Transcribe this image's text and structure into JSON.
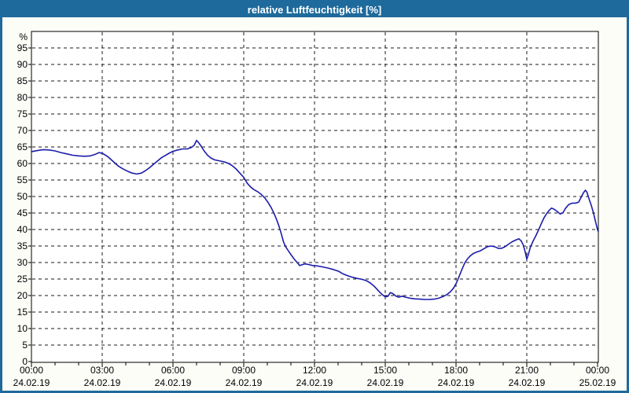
{
  "window": {
    "title": "relative Luftfeuchtigkeit [%]"
  },
  "colors": {
    "chrome": "#1e6a9c",
    "titlebar_text": "#ffffff",
    "line": "#1c1caa",
    "grid": "#1a1a1a",
    "frame": "#000000",
    "content_bg": "#fdfdf8",
    "plot_bg": "#ffffff",
    "label": "#000000"
  },
  "chart_data": {
    "type": "line",
    "title": "relative Luftfeuchtigkeit [%]",
    "xlabel": "",
    "ylabel": "%",
    "grid": "dashed",
    "legend": "none",
    "y_axis": {
      "unit_label": "%",
      "min": 0,
      "max": 100,
      "tick_step": 5,
      "labeled_ticks": [
        95,
        90,
        85,
        80,
        75,
        70,
        65,
        60,
        55,
        50,
        45,
        40,
        35,
        30,
        25,
        20,
        15,
        10,
        5,
        0
      ]
    },
    "x_axis": {
      "range_minutes": [
        0,
        1442
      ],
      "minor_tick_minutes": 60,
      "major_tick_minutes": 180,
      "ticks": [
        {
          "minutes": 0,
          "time": "00:00",
          "date": "24.02.19"
        },
        {
          "minutes": 180,
          "time": "03:00",
          "date": "24.02.19"
        },
        {
          "minutes": 360,
          "time": "06:00",
          "date": "24.02.19"
        },
        {
          "minutes": 540,
          "time": "09:00",
          "date": "24.02.19"
        },
        {
          "minutes": 720,
          "time": "12:00",
          "date": "24.02.19"
        },
        {
          "minutes": 900,
          "time": "15:00",
          "date": "24.02.19"
        },
        {
          "minutes": 1080,
          "time": "18:00",
          "date": "24.02.19"
        },
        {
          "minutes": 1260,
          "time": "21:00",
          "date": "24.02.19"
        },
        {
          "minutes": 1440,
          "time": "00:00",
          "date": "25.02.19"
        }
      ]
    },
    "series": [
      {
        "name": "relative Luftfeuchtigkeit",
        "color": "#1c1caa",
        "points": [
          [
            0,
            63.6
          ],
          [
            15,
            63.9
          ],
          [
            30,
            64.2
          ],
          [
            45,
            64.1
          ],
          [
            60,
            63.8
          ],
          [
            75,
            63.3
          ],
          [
            90,
            62.9
          ],
          [
            105,
            62.5
          ],
          [
            120,
            62.3
          ],
          [
            135,
            62.2
          ],
          [
            150,
            62.3
          ],
          [
            163,
            62.8
          ],
          [
            172,
            63.3
          ],
          [
            182,
            63.0
          ],
          [
            195,
            62.0
          ],
          [
            208,
            60.6
          ],
          [
            220,
            59.3
          ],
          [
            232,
            58.4
          ],
          [
            244,
            57.7
          ],
          [
            256,
            57.1
          ],
          [
            268,
            56.8
          ],
          [
            280,
            57.1
          ],
          [
            292,
            58.0
          ],
          [
            300,
            58.7
          ],
          [
            310,
            59.7
          ],
          [
            320,
            60.7
          ],
          [
            330,
            61.7
          ],
          [
            340,
            62.4
          ],
          [
            350,
            63.1
          ],
          [
            360,
            63.7
          ],
          [
            372,
            64.1
          ],
          [
            384,
            64.4
          ],
          [
            396,
            64.4
          ],
          [
            406,
            64.8
          ],
          [
            414,
            65.5
          ],
          [
            420,
            67.0
          ],
          [
            426,
            66.2
          ],
          [
            433,
            65.0
          ],
          [
            440,
            63.7
          ],
          [
            448,
            62.5
          ],
          [
            456,
            61.7
          ],
          [
            466,
            61.1
          ],
          [
            478,
            60.8
          ],
          [
            490,
            60.5
          ],
          [
            500,
            60.1
          ],
          [
            510,
            59.4
          ],
          [
            520,
            58.4
          ],
          [
            530,
            57.1
          ],
          [
            540,
            55.8
          ],
          [
            549,
            54.0
          ],
          [
            558,
            52.8
          ],
          [
            567,
            52.0
          ],
          [
            576,
            51.4
          ],
          [
            585,
            50.6
          ],
          [
            594,
            49.5
          ],
          [
            602,
            48.2
          ],
          [
            610,
            46.6
          ],
          [
            617,
            44.9
          ],
          [
            624,
            42.9
          ],
          [
            630,
            40.9
          ],
          [
            636,
            38.5
          ],
          [
            641,
            36.3
          ],
          [
            646,
            34.9
          ],
          [
            652,
            33.8
          ],
          [
            660,
            32.4
          ],
          [
            668,
            31.1
          ],
          [
            676,
            30.0
          ],
          [
            682,
            29.1
          ],
          [
            688,
            29.3
          ],
          [
            695,
            29.6
          ],
          [
            705,
            29.4
          ],
          [
            715,
            29.1
          ],
          [
            725,
            29.0
          ],
          [
            740,
            28.7
          ],
          [
            755,
            28.3
          ],
          [
            770,
            27.8
          ],
          [
            782,
            27.3
          ],
          [
            792,
            26.6
          ],
          [
            802,
            26.1
          ],
          [
            815,
            25.6
          ],
          [
            828,
            25.2
          ],
          [
            841,
            24.9
          ],
          [
            852,
            24.5
          ],
          [
            862,
            23.8
          ],
          [
            872,
            22.8
          ],
          [
            882,
            21.5
          ],
          [
            891,
            20.4
          ],
          [
            900,
            19.6
          ],
          [
            907,
            19.8
          ],
          [
            913,
            20.9
          ],
          [
            919,
            20.6
          ],
          [
            926,
            19.9
          ],
          [
            934,
            19.5
          ],
          [
            943,
            19.8
          ],
          [
            952,
            19.5
          ],
          [
            963,
            19.2
          ],
          [
            975,
            19.0
          ],
          [
            988,
            18.9
          ],
          [
            1000,
            18.8
          ],
          [
            1012,
            18.8
          ],
          [
            1024,
            18.9
          ],
          [
            1036,
            19.2
          ],
          [
            1047,
            19.7
          ],
          [
            1057,
            20.3
          ],
          [
            1066,
            21.2
          ],
          [
            1074,
            22.3
          ],
          [
            1081,
            23.8
          ],
          [
            1088,
            25.8
          ],
          [
            1095,
            27.9
          ],
          [
            1102,
            29.8
          ],
          [
            1109,
            31.1
          ],
          [
            1117,
            32.1
          ],
          [
            1125,
            32.8
          ],
          [
            1133,
            33.2
          ],
          [
            1141,
            33.5
          ],
          [
            1151,
            34.2
          ],
          [
            1160,
            34.8
          ],
          [
            1169,
            35.0
          ],
          [
            1178,
            34.8
          ],
          [
            1187,
            34.3
          ],
          [
            1196,
            34.3
          ],
          [
            1205,
            34.8
          ],
          [
            1214,
            35.6
          ],
          [
            1223,
            36.3
          ],
          [
            1232,
            36.8
          ],
          [
            1240,
            37.2
          ],
          [
            1246,
            36.5
          ],
          [
            1251,
            35.3
          ],
          [
            1256,
            33.2
          ],
          [
            1260,
            31.0
          ],
          [
            1264,
            32.4
          ],
          [
            1269,
            34.6
          ],
          [
            1276,
            36.5
          ],
          [
            1283,
            38.1
          ],
          [
            1290,
            39.9
          ],
          [
            1297,
            41.8
          ],
          [
            1304,
            43.6
          ],
          [
            1311,
            44.9
          ],
          [
            1317,
            45.8
          ],
          [
            1323,
            46.5
          ],
          [
            1330,
            46.1
          ],
          [
            1337,
            45.5
          ],
          [
            1345,
            44.7
          ],
          [
            1352,
            45.1
          ],
          [
            1359,
            46.5
          ],
          [
            1367,
            47.6
          ],
          [
            1376,
            48.0
          ],
          [
            1385,
            48.0
          ],
          [
            1392,
            48.3
          ],
          [
            1398,
            49.7
          ],
          [
            1404,
            51.1
          ],
          [
            1409,
            51.9
          ],
          [
            1413,
            51.3
          ],
          [
            1418,
            49.4
          ],
          [
            1424,
            47.3
          ],
          [
            1429,
            45.3
          ],
          [
            1434,
            42.8
          ],
          [
            1440,
            39.9
          ],
          [
            1442,
            39.4
          ]
        ]
      }
    ]
  }
}
